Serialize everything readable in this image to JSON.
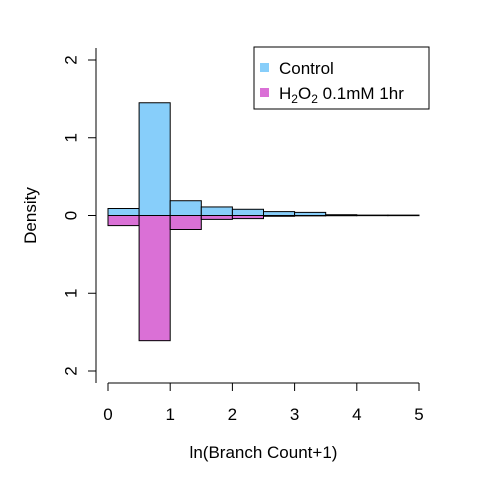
{
  "chart_data": {
    "type": "bar",
    "title": "",
    "xlabel": "ln(Branch Count+1)",
    "ylabel": "Density",
    "xlim": [
      0,
      5
    ],
    "ylim": [
      -2,
      2
    ],
    "x_ticks": [
      0,
      1,
      2,
      3,
      4,
      5
    ],
    "y_ticks": [
      2,
      1,
      0,
      -1,
      -2
    ],
    "y_tick_labels": [
      "2",
      "1",
      "0",
      "1",
      "2"
    ],
    "bin_edges": [
      0,
      0.5,
      1,
      1.5,
      2,
      2.5,
      3,
      3.5,
      4,
      4.5,
      5
    ],
    "grid": false,
    "legend_position": "top-right",
    "series": [
      {
        "name": "Control",
        "direction": "up",
        "color": "#87CEFA",
        "values": [
          0.09,
          1.45,
          0.19,
          0.11,
          0.08,
          0.05,
          0.04,
          0.01,
          0.005,
          0.005
        ]
      },
      {
        "name_parts": [
          "H",
          "2",
          "O",
          "2",
          " 0.1mM 1hr"
        ],
        "direction": "down",
        "color": "#DA70D6",
        "values": [
          0.13,
          1.61,
          0.18,
          0.05,
          0.04,
          0.01,
          0.005,
          0.003,
          0.002,
          0.002
        ]
      }
    ]
  }
}
